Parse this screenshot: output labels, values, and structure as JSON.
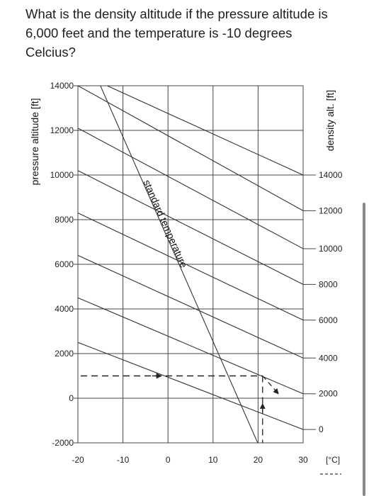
{
  "question": {
    "lines": [
      "What is the density altitude if the pressure altitude is",
      "6,000 feet and the temperature is -10 degrees",
      "Celcius?"
    ]
  },
  "chart_data": {
    "type": "line",
    "title": "",
    "xlabel": "[°C]",
    "ylabel": "pressure altitude [ft]",
    "y2label": "density alt. [ft]",
    "xlim": [
      -20,
      30
    ],
    "ylim": [
      -2000,
      14000
    ],
    "grid": true,
    "x_ticks": [
      -20,
      -10,
      0,
      10,
      20,
      30
    ],
    "y_ticks": [
      -2000,
      0,
      2000,
      4000,
      6000,
      8000,
      10000,
      12000,
      14000
    ],
    "y2_ticks": [
      0,
      2000,
      4000,
      6000,
      8000,
      10000,
      12000,
      14000
    ],
    "density_lines": [
      {
        "label": "0",
        "points": [
          [
            -20,
            2500
          ],
          [
            30,
            -1400
          ]
        ]
      },
      {
        "label": "2000",
        "points": [
          [
            -20,
            4500
          ],
          [
            30,
            200
          ]
        ]
      },
      {
        "label": "4000",
        "points": [
          [
            -20,
            6400
          ],
          [
            30,
            1800
          ]
        ]
      },
      {
        "label": "6000",
        "points": [
          [
            -20,
            8300
          ],
          [
            30,
            3500
          ]
        ]
      },
      {
        "label": "8000",
        "points": [
          [
            -20,
            10200
          ],
          [
            30,
            5100
          ]
        ]
      },
      {
        "label": "10000",
        "points": [
          [
            -20,
            12100
          ],
          [
            30,
            6700
          ]
        ]
      },
      {
        "label": "12000",
        "points": [
          [
            -20,
            14000
          ],
          [
            30,
            8400
          ]
        ]
      },
      {
        "label": "14000",
        "points": [
          [
            -13.5,
            14000
          ],
          [
            30,
            10000
          ]
        ]
      }
    ],
    "standard_temperature": {
      "label": "standard temperature",
      "points": [
        [
          -15,
          14000
        ],
        [
          21,
          -2500
        ]
      ]
    },
    "example_path": {
      "style": "dashed",
      "points": [
        [
          -20,
          1000
        ],
        [
          21,
          1000
        ],
        [
          21,
          -2000
        ]
      ],
      "arrow_to_line": [
        [
          24.5,
          200
        ]
      ]
    }
  }
}
